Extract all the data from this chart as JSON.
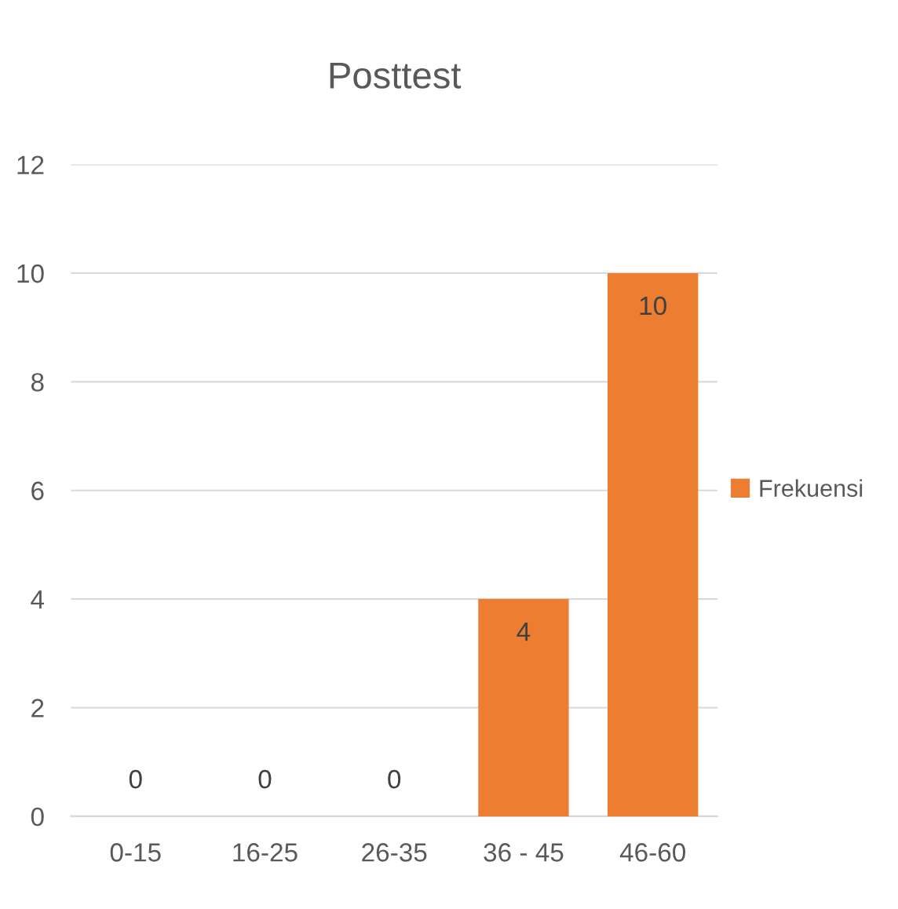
{
  "chart_data": {
    "type": "bar",
    "title": "Posttest",
    "categories": [
      "0-15",
      "16-25",
      "26-35",
      "36 - 45",
      "46-60"
    ],
    "series": [
      {
        "name": "Frekuensi",
        "color": "#ed7d31",
        "values": [
          0,
          0,
          0,
          4,
          10
        ]
      }
    ],
    "ylim": [
      0,
      12
    ],
    "yticks": [
      0,
      2,
      4,
      6,
      8,
      10,
      12
    ],
    "grid": "y",
    "legend": "right",
    "data_labels": true
  }
}
